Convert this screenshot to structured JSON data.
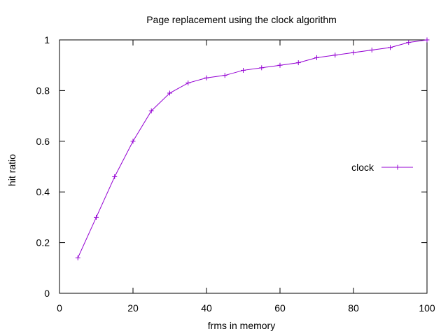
{
  "chart_data": {
    "type": "line",
    "title": "Page replacement using the clock algorithm",
    "xlabel": "frms in memory",
    "ylabel": "hit ratio",
    "xlim": [
      0,
      100
    ],
    "ylim": [
      0,
      1
    ],
    "xticks": [
      0,
      20,
      40,
      60,
      80,
      100
    ],
    "yticks": [
      0,
      0.2,
      0.4,
      0.6,
      0.8,
      1
    ],
    "xtick_labels": [
      "0",
      "20",
      "40",
      "60",
      "80",
      "100"
    ],
    "ytick_labels": [
      "0",
      "0.2",
      "0.4",
      "0.6",
      "0.8",
      "1"
    ],
    "grid": false,
    "legend": "right",
    "series": [
      {
        "name": "clock",
        "color": "#9400d3",
        "marker": "plus",
        "x": [
          5,
          10,
          15,
          20,
          25,
          30,
          35,
          40,
          45,
          50,
          55,
          60,
          65,
          70,
          75,
          80,
          85,
          90,
          95,
          100
        ],
        "y": [
          0.14,
          0.3,
          0.46,
          0.6,
          0.72,
          0.79,
          0.83,
          0.85,
          0.86,
          0.88,
          0.89,
          0.9,
          0.91,
          0.93,
          0.94,
          0.95,
          0.96,
          0.97,
          0.99,
          1.0
        ]
      }
    ]
  }
}
